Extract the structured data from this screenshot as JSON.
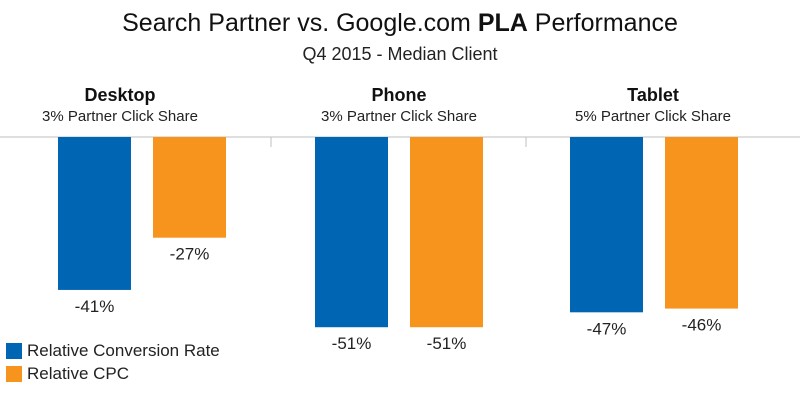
{
  "chart_data": {
    "type": "bar",
    "title_prefix": "Search Partner vs. Google.com ",
    "title_bold": "PLA",
    "title_suffix": " Performance",
    "subtitle": "Q4 2015 - Median Client",
    "categories": [
      "Desktop",
      "Phone",
      "Tablet"
    ],
    "category_subtitles": [
      "3% Partner Click Share",
      "3% Partner Click Share",
      "5% Partner Click Share"
    ],
    "series": [
      {
        "name": "Relative Conversion Rate",
        "color": "#0066B3",
        "values": [
          -41,
          -51,
          -47
        ],
        "labels": [
          "-41%",
          "-51%",
          "-47%"
        ]
      },
      {
        "name": "Relative CPC",
        "color": "#F7941D",
        "values": [
          -27,
          -51,
          -46
        ],
        "labels": [
          "-27%",
          "-51%",
          "-46%"
        ]
      }
    ],
    "ylim": [
      -60,
      0
    ],
    "grid": false,
    "legend_position": "bottom-left"
  }
}
